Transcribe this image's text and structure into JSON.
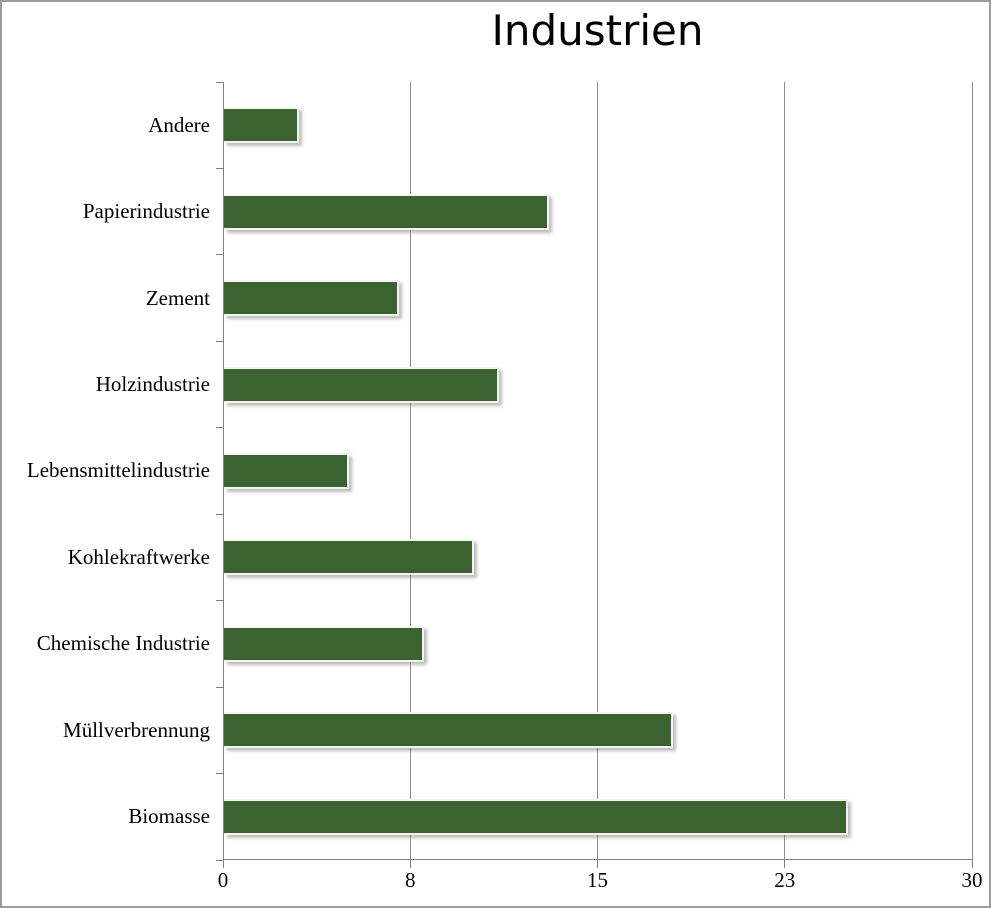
{
  "chart_data": {
    "type": "bar",
    "orientation": "horizontal",
    "title": "Industrien",
    "categories": [
      "Andere",
      "Papierindustrie",
      "Zement",
      "Holzindustrie",
      "Lebensmittelindustrie",
      "Kohlekraftwerke",
      "Chemische Industrie",
      "Müllverbrennung",
      "Biomasse"
    ],
    "values": [
      3,
      13,
      7,
      11,
      5,
      10,
      8,
      18,
      25
    ],
    "xlabel": "",
    "ylabel": "",
    "xlim": [
      0,
      30
    ],
    "x_tick_values": [
      0,
      7.5,
      15,
      22.5,
      30
    ],
    "x_tick_labels": [
      "0",
      "8",
      "15",
      "23",
      "30"
    ],
    "grid": true,
    "legend": "none",
    "bar_color": "#3A632F",
    "gridline_color": "#8e8e8e",
    "axis_color": "#7f7f7f",
    "text_color": "#000000"
  }
}
